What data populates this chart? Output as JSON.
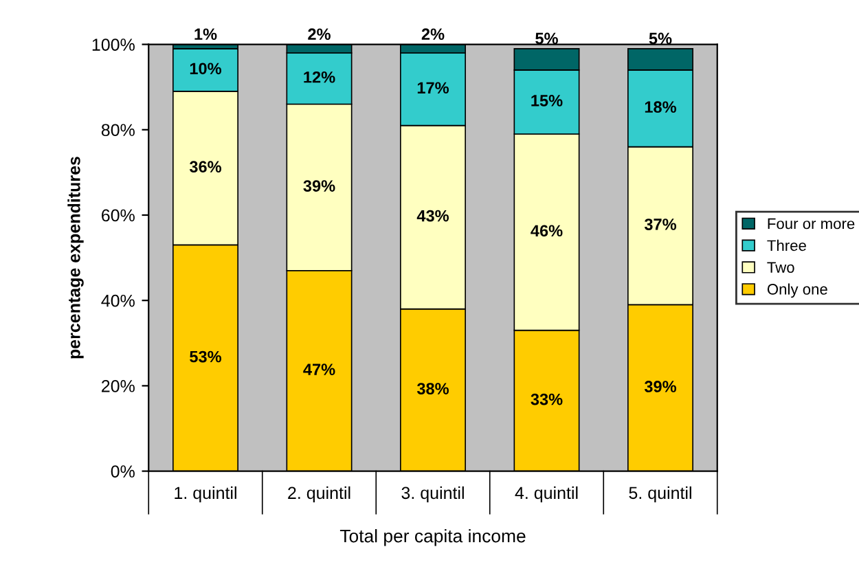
{
  "chart_data": {
    "type": "bar",
    "stacked": true,
    "xlabel": "Total per capita income",
    "ylabel": "percentage expenditures",
    "categories": [
      "1. quintil",
      "2. quintil",
      "3. quintil",
      "4. quintil",
      "5. quintil"
    ],
    "series": [
      {
        "name": "Only one",
        "color": "#ffcc00",
        "values": [
          53,
          47,
          38,
          33,
          39
        ],
        "value_labels": [
          "53%",
          "47%",
          "38%",
          "33%",
          "39%"
        ]
      },
      {
        "name": "Two",
        "color": "#ffffc0",
        "values": [
          36,
          39,
          43,
          46,
          37
        ],
        "value_labels": [
          "36%",
          "39%",
          "43%",
          "46%",
          "37%"
        ]
      },
      {
        "name": "Three",
        "color": "#33cccc",
        "values": [
          10,
          12,
          17,
          15,
          18
        ],
        "value_labels": [
          "10%",
          "12%",
          "17%",
          "15%",
          "18%"
        ]
      },
      {
        "name": "Four or more",
        "color": "#006666",
        "values": [
          1,
          2,
          2,
          5,
          5
        ],
        "value_labels": [
          "1%",
          "2%",
          "2%",
          "5%",
          "5%"
        ]
      }
    ],
    "ylim": [
      0,
      100
    ],
    "yticks": [
      {
        "value": 0,
        "label": "0%"
      },
      {
        "value": 20,
        "label": "20%"
      },
      {
        "value": 40,
        "label": "40%"
      },
      {
        "value": 60,
        "label": "60%"
      },
      {
        "value": 80,
        "label": "80%"
      },
      {
        "value": 100,
        "label": "100%"
      }
    ],
    "legend": "right",
    "grid": false
  }
}
